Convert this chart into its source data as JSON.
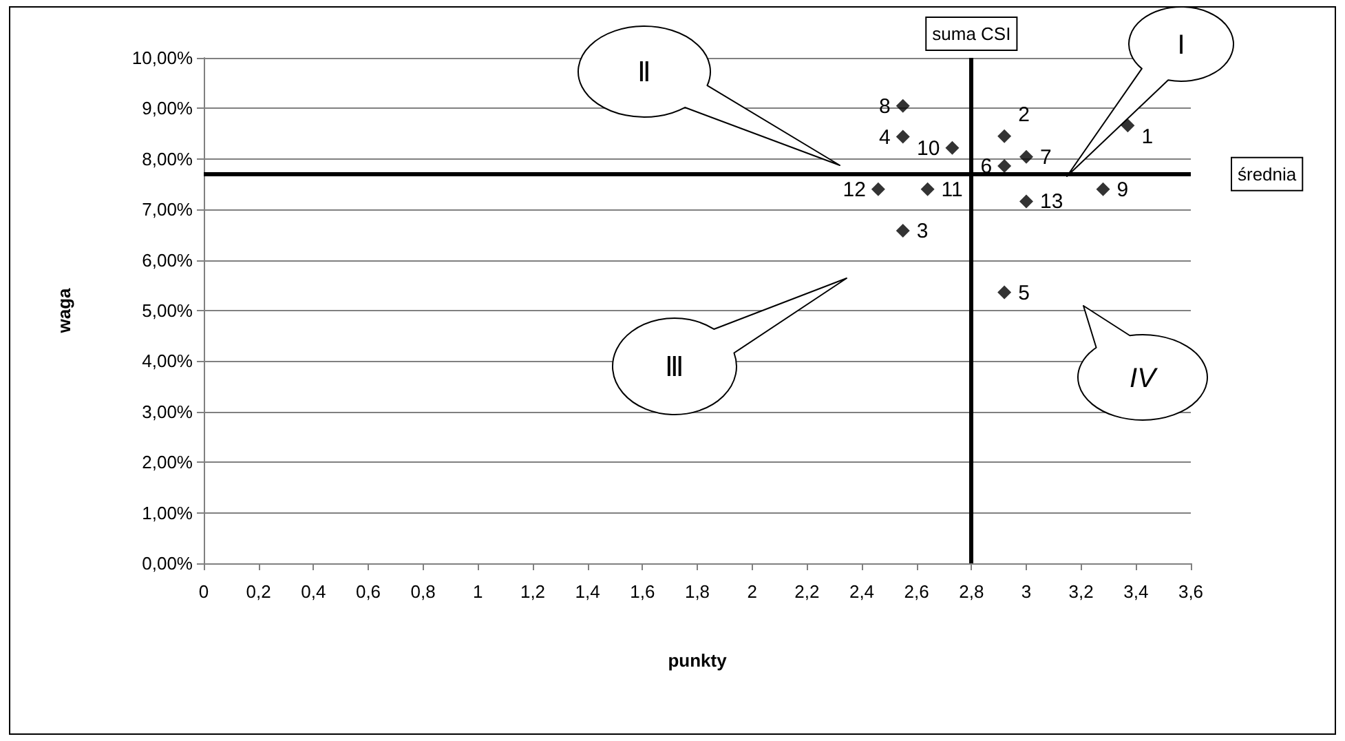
{
  "chart_data": {
    "type": "scatter",
    "xlabel": "punkty",
    "ylabel": "waga",
    "x": [
      3.37,
      2.92,
      2.55,
      2.55,
      2.92,
      2.92,
      3.0,
      2.55,
      3.28,
      2.73,
      2.64,
      2.46,
      3.0
    ],
    "values": [
      8.66,
      8.45,
      6.58,
      8.44,
      5.36,
      7.86,
      8.04,
      9.05,
      7.4,
      8.22,
      7.4,
      7.4,
      7.16
    ],
    "color": "#000000",
    "marker": "diamond",
    "xlim": [
      0,
      3.6
    ],
    "xticks": [
      0,
      {
        "value": 0.2,
        "label": "0,2"
      },
      {
        "value": 0.4,
        "label": "0,4"
      },
      {
        "value": 0.6,
        "label": "0,6"
      },
      {
        "value": 0.8,
        "label": "0,8"
      },
      1,
      {
        "value": 1.2,
        "label": "1,2"
      },
      {
        "value": 1.4,
        "label": "1,4"
      },
      {
        "value": 1.6,
        "label": "1,6"
      },
      {
        "value": 1.8,
        "label": "1,8"
      },
      2,
      {
        "value": 2.2,
        "label": "2,2"
      },
      {
        "value": 2.4,
        "label": "2,4"
      },
      {
        "value": 2.6,
        "label": "2,6"
      },
      {
        "value": 2.8,
        "label": "2,8"
      },
      3,
      {
        "value": 3.2,
        "label": "3,2"
      },
      {
        "value": 3.4,
        "label": "3,4"
      },
      {
        "value": 3.6,
        "label": "3,6"
      }
    ],
    "ylim": [
      0,
      10
    ],
    "yticks": [
      {
        "value": 0,
        "label": "0,00%"
      },
      {
        "value": 1,
        "label": "1,00%"
      },
      {
        "value": 2,
        "label": "2,00%"
      },
      {
        "value": 3,
        "label": "3,00%"
      },
      {
        "value": 4,
        "label": "4,00%"
      },
      {
        "value": 5,
        "label": "5,00%"
      },
      {
        "value": 6,
        "label": "6,00%"
      },
      {
        "value": 7,
        "label": "7,00%"
      },
      {
        "value": 8,
        "label": "8,00%"
      },
      {
        "value": 9,
        "label": "9,00%"
      },
      {
        "value": 10,
        "label": "10,00%"
      }
    ],
    "grid": "y",
    "ref_lines": [
      {
        "axis": "x",
        "value": 2.8,
        "label": "suma CSI",
        "color": "#000000"
      },
      {
        "axis": "y",
        "value": 7.7,
        "label": "średnia",
        "color": "#000000"
      }
    ],
    "annotations": [
      {
        "text": "1",
        "x": 3.37,
        "y": 8.66
      },
      {
        "text": "2",
        "x": 2.92,
        "y": 8.45
      },
      {
        "text": "3",
        "x": 2.55,
        "y": 6.58
      },
      {
        "text": "4",
        "x": 2.55,
        "y": 8.44
      },
      {
        "text": "5",
        "x": 2.92,
        "y": 5.36
      },
      {
        "text": "6",
        "x": 2.92,
        "y": 7.86
      },
      {
        "text": "7",
        "x": 3.0,
        "y": 8.04
      },
      {
        "text": "8",
        "x": 2.55,
        "y": 9.05
      },
      {
        "text": "9",
        "x": 3.28,
        "y": 7.4
      },
      {
        "text": "10",
        "x": 2.73,
        "y": 8.22
      },
      {
        "text": "11",
        "x": 2.64,
        "y": 7.4
      },
      {
        "text": "12",
        "x": 2.46,
        "y": 7.4
      },
      {
        "text": "13",
        "x": 3.0,
        "y": 7.16
      },
      "I",
      "Ⅱ",
      "Ⅲ",
      "IV"
    ]
  }
}
